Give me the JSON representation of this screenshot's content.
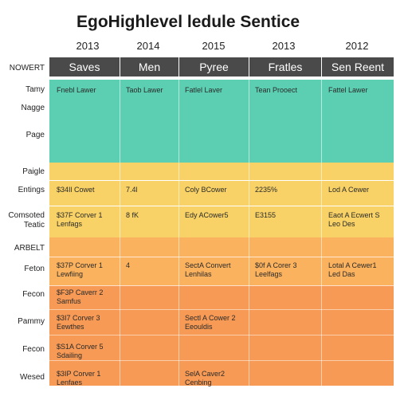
{
  "title": "EgoHighlevel ledule Sentice",
  "years": [
    "2013",
    "2014",
    "2015",
    "2013",
    "2012"
  ],
  "corner_label": "NOWERT",
  "column_headers": [
    "Saves",
    "Men",
    "Pyree",
    "Fratles",
    "Sen Reent"
  ],
  "row_labels": [
    {
      "text": "Tamy"
    },
    {
      "text": "Nagge"
    },
    {
      "text": "Page"
    },
    {
      "text": "Paigle"
    },
    {
      "text": "Entings"
    },
    {
      "text": "Comsoted\nTeatic"
    },
    {
      "text": "ARBELT"
    },
    {
      "text": "Feton"
    },
    {
      "text": "Fecon"
    },
    {
      "text": "Pammy"
    },
    {
      "text": "Fecon"
    },
    {
      "text": "Wesed"
    }
  ],
  "cells": [
    {
      "text": "Fnebl Lawer"
    },
    {
      "text": "Taob Lawer"
    },
    {
      "text": "Fatlel Laver"
    },
    {
      "text": "Tean Prooect"
    },
    {
      "text": "Fattel Lawer"
    },
    {
      "text": "$34Il Cowet"
    },
    {
      "text": "7.4l"
    },
    {
      "text": "Coly BCower"
    },
    {
      "text": "2235%"
    },
    {
      "text": "Lod A Cewer"
    },
    {
      "text": "$37F Corver 1\nLenfags"
    },
    {
      "text": "8 fK"
    },
    {
      "text": "Edy ACower5"
    },
    {
      "text": "E3155"
    },
    {
      "text": "Eaot A Ecwert S\nLeo Des"
    },
    {
      "text": "$37P Corver 1\nLewfiing"
    },
    {
      "text": "4"
    },
    {
      "text": "SectA Convert\nLenhilas"
    },
    {
      "text": "$0f A Corer 3\nLeelfags"
    },
    {
      "text": "Lotal A Cewer1\nLed Das"
    },
    {
      "text": "$F3P Caverr 2\nSamfus"
    },
    {
      "text": "$3I7 Corver 3\nEewthes"
    },
    {
      "text": "Sectl A Cower 2\nEeouldis"
    },
    {
      "text": "$S1A Corver 5\nSdailing"
    },
    {
      "text": "$3IP Corver 1\nLenfaes"
    },
    {
      "text": "SelA Caver2\nCenbing"
    }
  ],
  "colors": {
    "header": "#4a4a4a",
    "teal": "#5ccfb2",
    "yellow": "#f8d266",
    "light_orange": "#fbb25e",
    "orange": "#f79a55"
  }
}
